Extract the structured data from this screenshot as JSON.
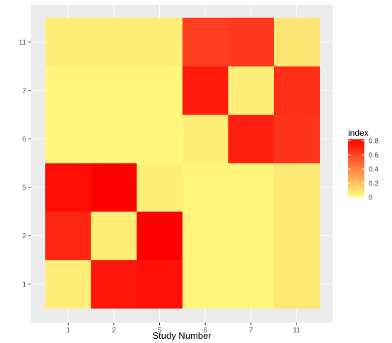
{
  "chart_data": {
    "type": "heatmap",
    "xlabel": "Study Number",
    "ylabel": "",
    "x_categories": [
      "1",
      "2",
      "5",
      "6",
      "7",
      "11"
    ],
    "y_categories": [
      "1",
      "2",
      "5",
      "6",
      "7",
      "11"
    ],
    "values": [
      [
        0.05,
        0.75,
        0.77,
        0.03,
        0.03,
        0.07
      ],
      [
        0.7,
        0.05,
        0.82,
        0.03,
        0.03,
        0.07
      ],
      [
        0.78,
        0.82,
        0.05,
        0.03,
        0.03,
        0.07
      ],
      [
        0.03,
        0.03,
        0.03,
        0.05,
        0.72,
        0.65
      ],
      [
        0.03,
        0.03,
        0.03,
        0.73,
        0.05,
        0.67
      ],
      [
        0.05,
        0.05,
        0.05,
        0.62,
        0.64,
        0.08
      ]
    ],
    "value_range": [
      0,
      0.82
    ],
    "color_low": "#FFFF80",
    "color_high": "#FF0000",
    "legend": {
      "title": "index",
      "ticks": [
        "0",
        "0.2",
        "0.4",
        "0.6",
        "0.8"
      ],
      "tick_values": [
        0,
        0.2,
        0.4,
        0.6,
        0.8
      ],
      "position": "right"
    },
    "panel_background": "#EBEBEB",
    "grid": true
  }
}
